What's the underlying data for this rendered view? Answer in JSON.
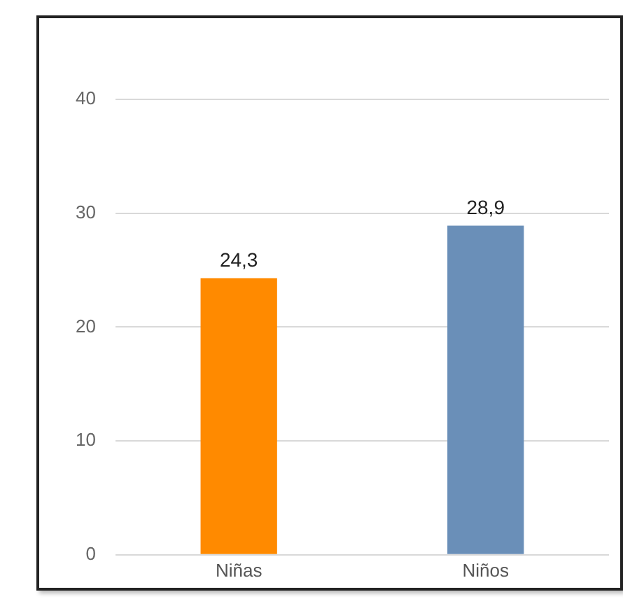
{
  "chart_data": {
    "type": "bar",
    "categories": [
      "Niñas",
      "Niños"
    ],
    "colors": [
      "#ff8a00",
      "#6a8fb8"
    ],
    "values": [
      24.3,
      28.9
    ],
    "value_labels": [
      "24,3",
      "28,9"
    ],
    "ylim": [
      0,
      40
    ],
    "yticks": [
      0,
      10,
      20,
      30,
      40
    ],
    "grid": "y",
    "legend": false
  }
}
